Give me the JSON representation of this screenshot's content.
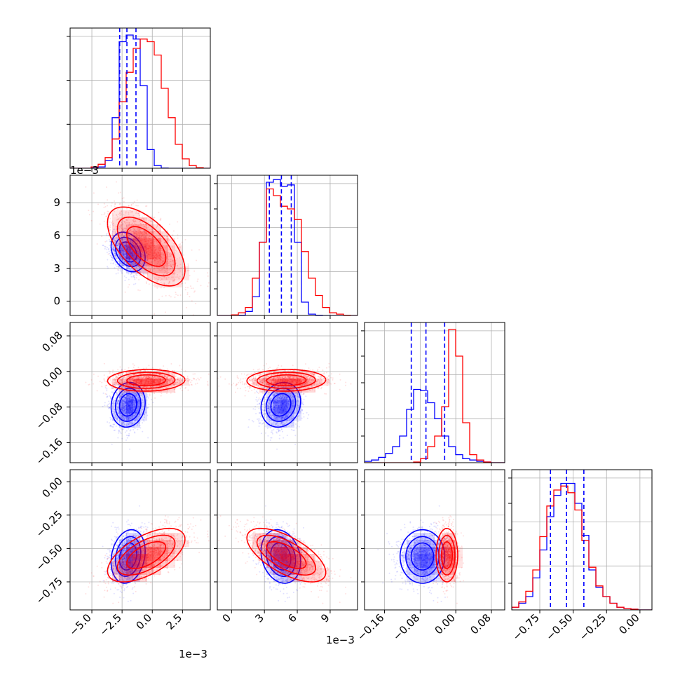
{
  "chart_data": {
    "type": "corner",
    "series": [
      {
        "name": "",
        "color": "#0000ff"
      },
      {
        "name": "",
        "color": "#ff0000"
      }
    ],
    "axis_exponent": "1e−3",
    "parameters": [
      {
        "range": [
          -6.8,
          4.8
        ],
        "scale": 0.001,
        "ticks": [
          -5.0,
          -2.5,
          0.0,
          2.5
        ],
        "tick_labels": [
          "−5.0",
          "−2.5",
          "0.0",
          "2.5"
        ],
        "offset_label": "1e−3",
        "hist_quantiles": [
          -2.7,
          -2.1,
          -1.35
        ],
        "hist_max": 1.0
      },
      {
        "range": [
          -1.3,
          11.5
        ],
        "scale": 0.001,
        "ticks": [
          0,
          3,
          6,
          9
        ],
        "tick_labels": [
          "0",
          "3",
          "6",
          "9"
        ],
        "offset_label": "1e−3",
        "hist_quantiles": [
          3.45,
          4.55,
          5.45
        ],
        "hist_max": 1.0
      },
      {
        "range": [
          -0.205,
          0.11
        ],
        "scale": 1,
        "ticks": [
          -0.16,
          -0.08,
          0.0,
          0.08
        ],
        "tick_labels": [
          "−0.16",
          "−0.08",
          "0.00",
          "0.08"
        ],
        "hist_quantiles": [
          -0.1,
          -0.067,
          -0.025
        ],
        "hist_max": 1.0
      },
      {
        "range": [
          -0.96,
          0.09
        ],
        "scale": 1,
        "ticks": [
          -0.75,
          -0.5,
          -0.25,
          0.0
        ],
        "tick_labels": [
          "−0.75",
          "−0.50",
          "−0.25",
          "0.00"
        ],
        "hist_quantiles": [
          -0.67,
          -0.55,
          -0.42
        ],
        "hist_max": 1.0
      }
    ],
    "y_ticks_by_row": [
      null,
      {
        "ticks": [
          0,
          3,
          6,
          9
        ],
        "labels": [
          "0",
          "3",
          "6",
          "9"
        ],
        "offset_label": "1e−3"
      },
      {
        "ticks": [
          -0.16,
          -0.08,
          0.0,
          0.08
        ],
        "labels": [
          "−0.16",
          "−0.08",
          "0.00",
          "0.08"
        ]
      },
      {
        "ticks": [
          -0.75,
          -0.5,
          -0.25,
          0.0
        ],
        "labels": [
          "−0.75",
          "−0.50",
          "−0.25",
          "0.00"
        ]
      }
    ],
    "histograms": {
      "0": {
        "edges": [
          -6.8,
          -6.22,
          -5.64,
          -5.06,
          -4.48,
          -3.9,
          -3.32,
          -2.74,
          -2.16,
          -1.58,
          -1.0,
          -0.42,
          0.16,
          0.74,
          1.32,
          1.9,
          2.48,
          3.06,
          3.64,
          4.22,
          4.8
        ],
        "blue": [
          0,
          0,
          0,
          0.002,
          0.01,
          0.06,
          0.38,
          0.95,
          1.0,
          0.97,
          0.62,
          0.14,
          0.02,
          0.002,
          0,
          0,
          0,
          0,
          0,
          0
        ],
        "red": [
          0,
          0,
          0,
          0.01,
          0.03,
          0.08,
          0.22,
          0.5,
          0.72,
          0.9,
          0.97,
          0.95,
          0.85,
          0.6,
          0.38,
          0.18,
          0.07,
          0.02,
          0.005,
          0
        ]
      },
      "1": {
        "edges": [
          -1.3,
          -0.66,
          -0.02,
          0.62,
          1.26,
          1.9,
          2.54,
          3.18,
          3.82,
          4.46,
          5.1,
          5.74,
          6.38,
          7.02,
          7.66,
          8.3,
          8.94,
          9.58,
          10.22,
          10.86,
          11.5
        ],
        "blue": [
          0,
          0,
          0,
          0.002,
          0.03,
          0.14,
          0.55,
          1.0,
          1.02,
          0.97,
          0.98,
          0.55,
          0.1,
          0.01,
          0.002,
          0,
          0,
          0,
          0,
          0
        ],
        "red": [
          0,
          0,
          0.005,
          0.02,
          0.06,
          0.28,
          0.55,
          0.95,
          0.9,
          0.82,
          0.8,
          0.72,
          0.48,
          0.28,
          0.15,
          0.06,
          0.02,
          0.01,
          0.002,
          0
        ]
      },
      "2": {
        "edges": [
          -0.205,
          -0.18925,
          -0.1735,
          -0.15775,
          -0.142,
          -0.12625,
          -0.1105,
          -0.09475,
          -0.079,
          -0.06325,
          -0.0475,
          -0.03175,
          -0.016,
          -0.00025,
          0.0155,
          0.03125,
          0.047,
          0.06275,
          0.0785,
          0.09425,
          0.11
        ],
        "blue": [
          0.01,
          0.02,
          0.04,
          0.07,
          0.12,
          0.2,
          0.4,
          0.55,
          0.54,
          0.45,
          0.33,
          0.2,
          0.12,
          0.06,
          0.03,
          0.02,
          0.01,
          0.005,
          0,
          0
        ],
        "red": [
          0,
          0,
          0,
          0,
          0,
          0,
          0,
          0.005,
          0.03,
          0.12,
          0.2,
          0.42,
          1.0,
          0.8,
          0.3,
          0.06,
          0.02,
          0.005,
          0,
          0
        ]
      },
      "3": {
        "edges": [
          -0.96,
          -0.9075,
          -0.855,
          -0.8025,
          -0.75,
          -0.6975,
          -0.645,
          -0.5925,
          -0.54,
          -0.4875,
          -0.435,
          -0.3825,
          -0.33,
          -0.2775,
          -0.225,
          -0.1725,
          -0.12,
          -0.0675,
          -0.015,
          0.0375,
          0.09
        ],
        "blue": [
          0.02,
          0.05,
          0.1,
          0.24,
          0.45,
          0.7,
          0.86,
          0.95,
          0.95,
          0.8,
          0.56,
          0.3,
          0.17,
          0.1,
          0.05,
          0.02,
          0.01,
          0.005,
          0,
          0
        ],
        "red": [
          0.02,
          0.06,
          0.14,
          0.3,
          0.55,
          0.78,
          0.9,
          0.93,
          0.88,
          0.75,
          0.52,
          0.32,
          0.18,
          0.1,
          0.05,
          0.02,
          0.01,
          0.005,
          0,
          0
        ]
      }
    },
    "distributions": {
      "blue": {
        "mean": [
          -0.002,
          0.0045,
          -0.075,
          -0.56
        ],
        "sd": [
          0.0007,
          0.0009,
          0.025,
          0.1
        ],
        "corr": [
          [
            1,
            -0.3,
            0.1,
            0.2
          ],
          [
            -0.3,
            1,
            0.15,
            -0.2
          ],
          [
            0.1,
            0.15,
            1,
            0.0
          ],
          [
            0.2,
            -0.2,
            0.0,
            1
          ]
        ]
      },
      "red": {
        "mean": [
          -0.0005,
          0.005,
          -0.02,
          -0.55
        ],
        "sd": [
          0.0016,
          0.0018,
          0.012,
          0.1
        ],
        "corr": [
          [
            1,
            -0.6,
            0.05,
            0.6
          ],
          [
            -0.6,
            1,
            0.05,
            -0.65
          ],
          [
            0.05,
            0.05,
            1,
            0.0
          ],
          [
            0.6,
            -0.65,
            0.0,
            1
          ]
        ]
      }
    }
  }
}
